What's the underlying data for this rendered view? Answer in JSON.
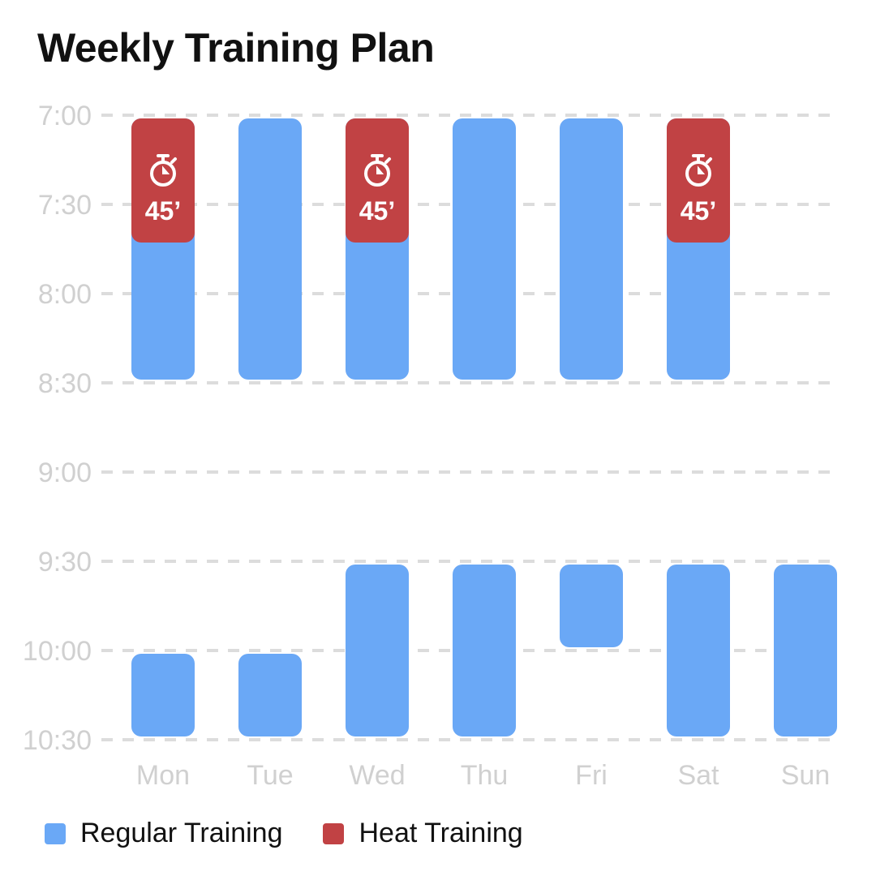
{
  "title": "Weekly Training Plan",
  "colors": {
    "regular": "#6aa8f6",
    "heat": "#c14244",
    "grid": "#dcdcdc",
    "axis_text": "#d0d0d0"
  },
  "legend": [
    {
      "label": "Regular Training",
      "color": "#6aa8f6"
    },
    {
      "label": "Heat Training",
      "color": "#c14244"
    }
  ],
  "chart_data": {
    "type": "bar",
    "orientation": "vertical-range",
    "title": "Weekly Training Plan",
    "categories": [
      "Mon",
      "Tue",
      "Wed",
      "Thu",
      "Fri",
      "Sat",
      "Sun"
    ],
    "y_ticks": [
      "7:00",
      "7:30",
      "8:00",
      "8:30",
      "9:00",
      "9:30",
      "10:00",
      "10:30"
    ],
    "ylim_minutes": [
      420,
      630
    ],
    "y_axis_inverted": true,
    "grid": true,
    "legend_position": "bottom-left",
    "series": [
      {
        "name": "Regular Training",
        "color": "#6aa8f6",
        "ranges": [
          {
            "day": "Mon",
            "start": 420,
            "end": 510
          },
          {
            "day": "Mon",
            "start": 600,
            "end": 630
          },
          {
            "day": "Tue",
            "start": 420,
            "end": 510
          },
          {
            "day": "Tue",
            "start": 600,
            "end": 630
          },
          {
            "day": "Wed",
            "start": 420,
            "end": 510
          },
          {
            "day": "Wed",
            "start": 570,
            "end": 630
          },
          {
            "day": "Thu",
            "start": 420,
            "end": 510
          },
          {
            "day": "Thu",
            "start": 570,
            "end": 630
          },
          {
            "day": "Fri",
            "start": 420,
            "end": 510
          },
          {
            "day": "Fri",
            "start": 570,
            "end": 600
          },
          {
            "day": "Sat",
            "start": 420,
            "end": 510
          },
          {
            "day": "Sat",
            "start": 570,
            "end": 630
          },
          {
            "day": "Sun",
            "start": 570,
            "end": 630
          }
        ]
      },
      {
        "name": "Heat Training",
        "color": "#c14244",
        "ranges": [
          {
            "day": "Mon",
            "start": 420,
            "end": 465,
            "label": "45’"
          },
          {
            "day": "Wed",
            "start": 420,
            "end": 465,
            "label": "45’"
          },
          {
            "day": "Sat",
            "start": 420,
            "end": 465,
            "label": "45’"
          }
        ]
      }
    ]
  }
}
